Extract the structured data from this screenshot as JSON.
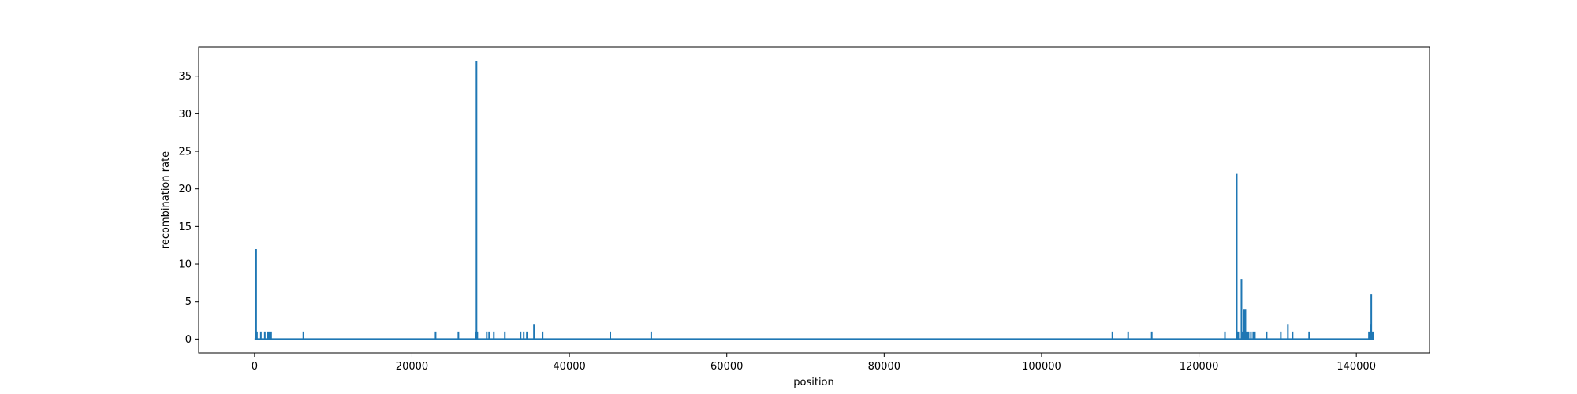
{
  "chart_data": {
    "type": "line",
    "title": "",
    "xlabel": "position",
    "ylabel": "recombination rate",
    "xlim": [
      -7100,
      149300
    ],
    "ylim": [
      -1.85,
      38.85
    ],
    "x_ticks": [
      0,
      20000,
      40000,
      60000,
      80000,
      100000,
      120000,
      140000
    ],
    "x_tick_labels": [
      "0",
      "20000",
      "40000",
      "60000",
      "80000",
      "100000",
      "120000",
      "140000"
    ],
    "y_ticks": [
      0,
      5,
      10,
      15,
      20,
      25,
      30,
      35
    ],
    "y_tick_labels": [
      "0",
      "5",
      "10",
      "15",
      "20",
      "25",
      "30",
      "35"
    ],
    "grid": false,
    "legend": "none",
    "line_color": "#1f77b4",
    "x_start": 0,
    "x_end": 142000,
    "baseline": 0,
    "series": [
      {
        "x": [
          200,
          300,
          800,
          1300,
          1700,
          1900,
          2100,
          6200,
          23000,
          25900,
          28100,
          28200,
          28300,
          29500,
          29800,
          30400,
          31800,
          33800,
          34200,
          34600,
          35500,
          36600,
          45200,
          50400,
          109000,
          111000,
          114000,
          123300,
          124800,
          125000,
          125400,
          125600,
          125700,
          125900,
          126000,
          126100,
          126300,
          126600,
          126900,
          127100,
          128600,
          130400,
          131300,
          131900,
          134000,
          141600,
          141800,
          141900,
          142100
        ],
        "y": [
          12,
          1,
          1,
          1,
          1,
          1,
          1,
          1,
          1,
          1,
          1,
          37,
          1,
          1,
          1,
          1,
          1,
          1,
          1,
          1,
          2,
          1,
          1,
          1,
          1,
          1,
          1,
          1,
          22,
          1,
          8,
          1,
          4,
          4,
          1,
          1,
          1,
          1,
          1,
          1,
          1,
          1,
          2,
          1,
          1,
          1,
          2,
          6,
          1
        ]
      }
    ]
  }
}
